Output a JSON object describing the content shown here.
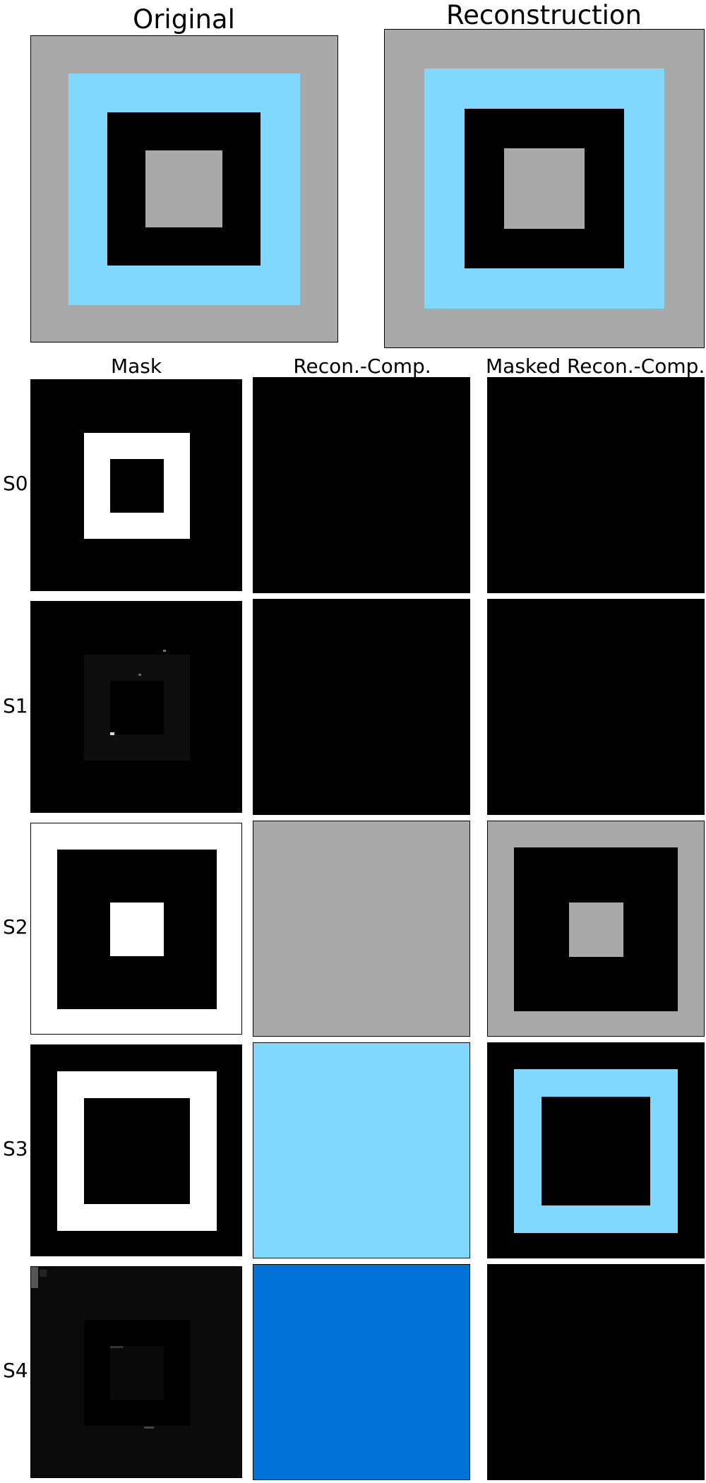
{
  "colors": {
    "gray": "#a9a9a9",
    "light_blue": "#80d8ff",
    "black": "#000000",
    "white": "#ffffff",
    "blue": "#0073d9"
  },
  "headers": {
    "original": "Original",
    "reconstruction": "Reconstruction",
    "mask": "Mask",
    "recon_comp": "Recon.-Comp.",
    "masked_recon_comp": "Masked Recon.-Comp."
  },
  "rows": [
    "S0",
    "S1",
    "S2",
    "S3",
    "S4"
  ]
}
